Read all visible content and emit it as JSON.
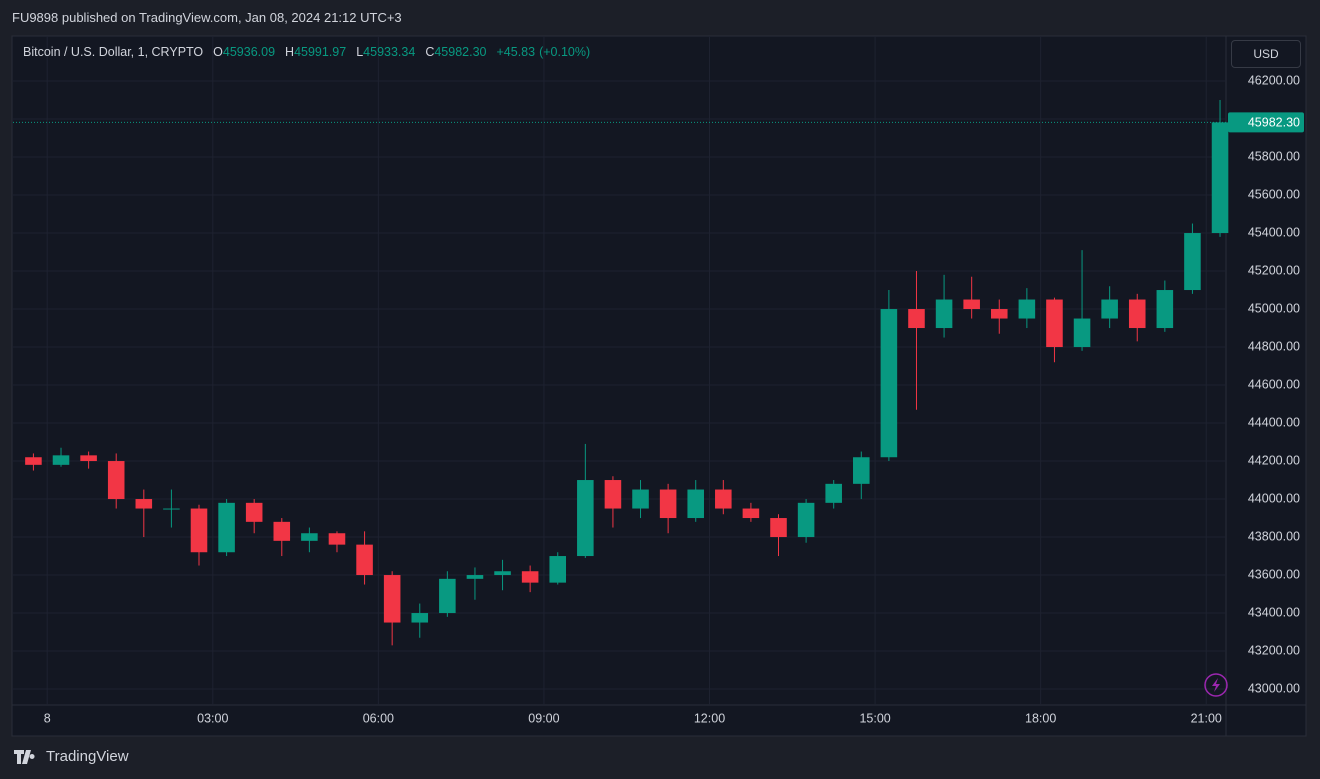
{
  "header": {
    "title": "FU9898 published on TradingView.com, Jan 08, 2024 21:12 UTC+3"
  },
  "footer": {
    "brand": "TradingView"
  },
  "chart_data": {
    "type": "candlestick",
    "legend": {
      "symbol": "Bitcoin / U.S. Dollar, 1, CRYPTO",
      "items": [
        {
          "name": "O",
          "value": "45936.09"
        },
        {
          "name": "H",
          "value": "45991.97"
        },
        {
          "name": "L",
          "value": "45933.34"
        },
        {
          "name": "C",
          "value": "45982.30"
        }
      ],
      "change": "+45.83",
      "change_pct": "(+0.10%)"
    },
    "currency": "USD",
    "up_color": "#089981",
    "down_color": "#f23645",
    "last_price": {
      "value": 45982.3,
      "label": "45982.30"
    },
    "grid": true,
    "x": [
      -0.5,
      0,
      0.5,
      1,
      1.5,
      2,
      2.5,
      3,
      3.5,
      4,
      4.5,
      5,
      5.5,
      6,
      6.5,
      7,
      7.5,
      8,
      8.5,
      9,
      9.5,
      10,
      10.5,
      11,
      11.5,
      12,
      12.5,
      13,
      13.5,
      14,
      14.5,
      15,
      15.5,
      16,
      16.5,
      17,
      17.5,
      18,
      18.5,
      19,
      19.5,
      20,
      20.5,
      21
    ],
    "open": [
      44220,
      44180,
      44230,
      44200,
      44000,
      43950,
      43950,
      43720,
      43980,
      43880,
      43780,
      43820,
      43760,
      43600,
      43350,
      43400,
      43580,
      43600,
      43620,
      43560,
      43700,
      44100,
      43950,
      44050,
      43900,
      44050,
      43950,
      43900,
      43800,
      43980,
      44080,
      44220,
      45000,
      44900,
      45050,
      45000,
      44950,
      45050,
      44800,
      44950,
      45050,
      44900,
      45100,
      45400
    ],
    "high": [
      44240,
      44270,
      44250,
      44240,
      44050,
      44050,
      43970,
      44000,
      44000,
      43900,
      43850,
      43830,
      43830,
      43620,
      43450,
      43620,
      43640,
      43680,
      43650,
      43720,
      44290,
      44120,
      44100,
      44080,
      44100,
      44100,
      43980,
      43920,
      44000,
      44100,
      44250,
      45100,
      45200,
      45180,
      45170,
      45050,
      45110,
      45060,
      45310,
      45120,
      45080,
      45150,
      45450,
      46100
    ],
    "low": [
      44150,
      44170,
      44160,
      43950,
      43800,
      43850,
      43650,
      43700,
      43820,
      43700,
      43720,
      43720,
      43550,
      43230,
      43270,
      43380,
      43470,
      43520,
      43510,
      43550,
      43690,
      43850,
      43900,
      43820,
      43880,
      43920,
      43880,
      43700,
      43770,
      43950,
      44000,
      44200,
      44470,
      44850,
      44950,
      44870,
      44900,
      44720,
      44780,
      44900,
      44830,
      44880,
      45080,
      45380
    ],
    "close": [
      44180,
      44230,
      44200,
      44000,
      43950,
      43950,
      43720,
      43980,
      43880,
      43780,
      43820,
      43760,
      43600,
      43350,
      43400,
      43580,
      43600,
      43620,
      43560,
      43700,
      44100,
      43950,
      44050,
      43900,
      44050,
      43950,
      43900,
      43800,
      43980,
      44080,
      44220,
      45000,
      44900,
      45050,
      45000,
      44950,
      45050,
      44800,
      44950,
      45050,
      44900,
      45100,
      45400,
      45982.3
    ],
    "xlim": [
      -0.62,
      21.34
    ],
    "xticks": [
      {
        "value": 0,
        "label": "8"
      },
      {
        "value": 3,
        "label": "03:00"
      },
      {
        "value": 6,
        "label": "06:00"
      },
      {
        "value": 9,
        "label": "09:00"
      },
      {
        "value": 12,
        "label": "12:00"
      },
      {
        "value": 15,
        "label": "15:00"
      },
      {
        "value": 18,
        "label": "18:00"
      },
      {
        "value": 21,
        "label": "21:00"
      }
    ],
    "ylim": [
      42916,
      46437
    ],
    "yticks": [
      {
        "value": 43000,
        "label": "43000.00"
      },
      {
        "value": 43200,
        "label": "43200.00"
      },
      {
        "value": 43400,
        "label": "43400.00"
      },
      {
        "value": 43600,
        "label": "43600.00"
      },
      {
        "value": 43800,
        "label": "43800.00"
      },
      {
        "value": 44000,
        "label": "44000.00"
      },
      {
        "value": 44200,
        "label": "44200.00"
      },
      {
        "value": 44400,
        "label": "44400.00"
      },
      {
        "value": 44600,
        "label": "44600.00"
      },
      {
        "value": 44800,
        "label": "44800.00"
      },
      {
        "value": 45000,
        "label": "45000.00"
      },
      {
        "value": 45200,
        "label": "45200.00"
      },
      {
        "value": 45400,
        "label": "45400.00"
      },
      {
        "value": 45600,
        "label": "45600.00"
      },
      {
        "value": 45800,
        "label": "45800.00"
      },
      {
        "value": 46000,
        "label": "46000.00"
      },
      {
        "value": 46200,
        "label": "46200.00"
      }
    ]
  }
}
